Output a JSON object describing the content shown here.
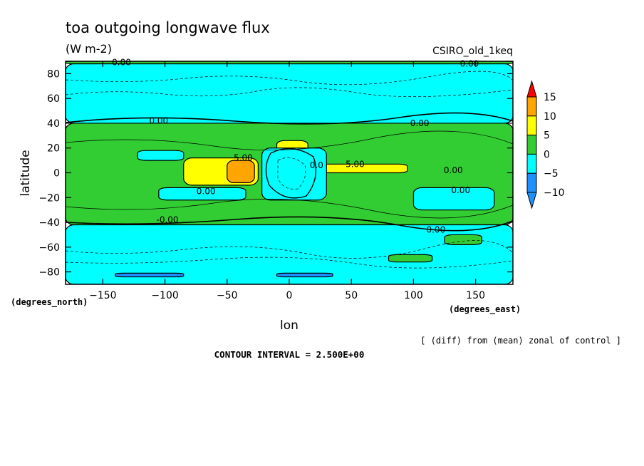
{
  "chart_data": {
    "type": "heatmap",
    "title": "toa outgoing longwave flux",
    "units": "(W m-2)",
    "model_label": "CSIRO_old_1keq",
    "xlabel": "lon",
    "ylabel": "latitude",
    "x_units_label": "(degrees_east)",
    "y_units_label": "(degrees_north)",
    "xlim": [
      -180,
      180
    ],
    "ylim": [
      -90,
      90
    ],
    "x_ticks": [
      -150,
      -100,
      -50,
      0,
      50,
      100,
      150
    ],
    "y_ticks": [
      80,
      60,
      40,
      20,
      0,
      -20,
      -40,
      -60,
      -80
    ],
    "contour_interval_text": "CONTOUR INTERVAL = 2.500E+00",
    "footnote": "[ (diff) from (mean) zonal of control ]",
    "colorbar": {
      "levels": [
        -10,
        -5,
        0,
        5,
        10,
        15
      ],
      "colors": [
        "#1e90ff",
        "#00ffff",
        "#32cd32",
        "#ffff00",
        "#ffa500",
        "#ff0000"
      ],
      "bins": [
        {
          "from": -15,
          "to": -10,
          "color": "#1e90ff"
        },
        {
          "from": -10,
          "to": -5,
          "color": "#1e90ff"
        },
        {
          "from": -5,
          "to": 0,
          "color": "#00ffff"
        },
        {
          "from": 0,
          "to": 5,
          "color": "#32cd32"
        },
        {
          "from": 5,
          "to": 10,
          "color": "#ffff00"
        },
        {
          "from": 10,
          "to": 15,
          "color": "#ffa500"
        },
        {
          "from": 15,
          "to": 20,
          "color": "#ff0000"
        }
      ]
    },
    "contour_labels": [
      {
        "text": "0.00",
        "lon": -135,
        "lat": 89
      },
      {
        "text": "0.00",
        "lon": 145,
        "lat": 88
      },
      {
        "text": "0.00",
        "lon": -105,
        "lat": 42
      },
      {
        "text": "0.00",
        "lon": 105,
        "lat": 40
      },
      {
        "text": "5.00",
        "lon": -37,
        "lat": 12
      },
      {
        "text": "5.00",
        "lon": 53,
        "lat": 7
      },
      {
        "text": "0.0",
        "lon": 22,
        "lat": 6
      },
      {
        "text": "0.00",
        "lon": 132,
        "lat": 2
      },
      {
        "text": "0.00",
        "lon": -67,
        "lat": -15
      },
      {
        "text": "0.00",
        "lon": 138,
        "lat": -14
      },
      {
        "text": "-0.00",
        "lon": -98,
        "lat": -38
      },
      {
        "text": "0.00",
        "lon": 118,
        "lat": -46
      }
    ],
    "regions": [
      {
        "value": "0 to 5",
        "color": "#32cd32",
        "lat_from": -42,
        "lat_to": 40,
        "lon_from": -180,
        "lon_to": 180
      },
      {
        "value": "-5 to 0",
        "color": "#00ffff",
        "lat_from": -90,
        "lat_to": -42,
        "lon_from": -180,
        "lon_to": 180
      },
      {
        "value": "-5 to 0",
        "color": "#00ffff",
        "lat_from": 40,
        "lat_to": 88,
        "lon_from": -180,
        "lon_to": 180
      },
      {
        "value": "0 to 5",
        "color": "#32cd32",
        "lat_from": 88,
        "lat_to": 90,
        "lon_from": -180,
        "lon_to": 180
      },
      {
        "value": "-5 to 0",
        "color": "#00ffff",
        "lat_from": -22,
        "lat_to": -12,
        "lon_from": -105,
        "lon_to": -35
      },
      {
        "value": "-5 to 0",
        "color": "#00ffff",
        "lat_from": -30,
        "lat_to": -12,
        "lon_from": 100,
        "lon_to": 165
      },
      {
        "value": "-5 to 0",
        "color": "#00ffff",
        "lat_from": 10,
        "lat_to": 18,
        "lon_from": -122,
        "lon_to": -85
      },
      {
        "value": "5 to 10",
        "color": "#ffff00",
        "lat_from": 14,
        "lat_to": 26,
        "lon_from": -10,
        "lon_to": 15
      },
      {
        "value": "5 to 10",
        "color": "#ffff00",
        "lat_from": -10,
        "lat_to": 12,
        "lon_from": -85,
        "lon_to": -25
      },
      {
        "value": "10 to 15",
        "color": "#ffa500",
        "lat_from": -8,
        "lat_to": 10,
        "lon_from": -50,
        "lon_to": -28
      },
      {
        "value": "5 to 10",
        "color": "#ffff00",
        "lat_from": 0,
        "lat_to": 7,
        "lon_from": 20,
        "lon_to": 95
      },
      {
        "value": "-10 to -5",
        "color": "#1e90ff",
        "lat_from": -20,
        "lat_to": 18,
        "lon_from": -18,
        "lon_to": 25
      },
      {
        "value": "-5 to 0",
        "color": "#00ffff",
        "lat_from": -22,
        "lat_to": 20,
        "lon_from": -22,
        "lon_to": 30
      },
      {
        "value": "0 to 5",
        "color": "#32cd32",
        "lat_from": -72,
        "lat_to": -66,
        "lon_from": 80,
        "lon_to": 115
      },
      {
        "value": "0 to 5",
        "color": "#32cd32",
        "lat_from": -58,
        "lat_to": -50,
        "lon_from": 125,
        "lon_to": 155
      },
      {
        "value": "-10 to -5",
        "color": "#1e90ff",
        "lat_from": -84,
        "lat_to": -81,
        "lon_from": -140,
        "lon_to": -85
      },
      {
        "value": "-10 to -5",
        "color": "#1e90ff",
        "lat_from": -84,
        "lat_to": -81,
        "lon_from": -10,
        "lon_to": 35
      }
    ]
  }
}
